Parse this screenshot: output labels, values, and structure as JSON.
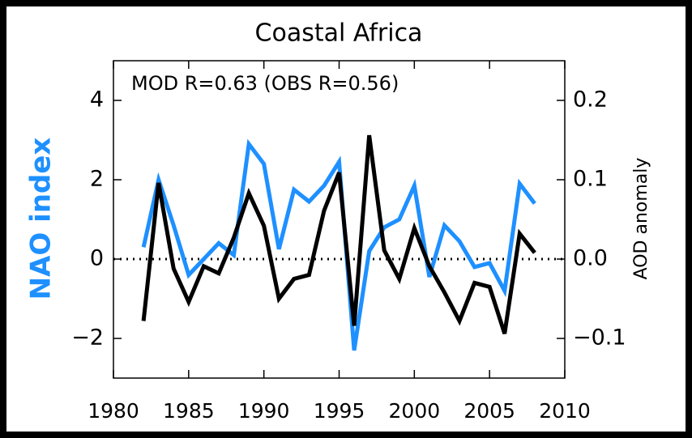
{
  "chart_data": {
    "type": "line",
    "title": "Coastal Africa",
    "annotation": "MOD R=0.63 (OBS R=0.56)",
    "ylabel": "NAO index",
    "y2label": "AOD anomaly",
    "x": [
      1982,
      1983,
      1984,
      1985,
      1986,
      1987,
      1988,
      1989,
      1990,
      1991,
      1992,
      1993,
      1994,
      1995,
      1996,
      1997,
      1998,
      1999,
      2000,
      2001,
      2002,
      2003,
      2004,
      2005,
      2006,
      2007,
      2008
    ],
    "series": [
      {
        "color": "#1e90ff",
        "values": [
          0.3,
          2.0,
          0.85,
          -0.4,
          0.0,
          0.4,
          0.1,
          2.9,
          2.4,
          0.25,
          1.75,
          1.45,
          1.85,
          2.45,
          -2.3,
          0.2,
          0.8,
          1.0,
          1.85,
          -0.45,
          0.85,
          0.45,
          -0.2,
          -0.1,
          -0.8,
          1.9,
          1.4
        ]
      },
      {
        "color": "#000000",
        "axis": "y2",
        "values": [
          -0.078,
          0.096,
          -0.012,
          -0.054,
          -0.009,
          -0.018,
          0.027,
          0.083,
          0.042,
          -0.05,
          -0.025,
          -0.02,
          0.061,
          0.109,
          -0.084,
          0.156,
          0.011,
          -0.025,
          0.039,
          -0.009,
          -0.042,
          -0.078,
          -0.03,
          -0.035,
          -0.094,
          0.032,
          0.008
        ]
      }
    ],
    "xlim": [
      1980,
      2010
    ],
    "xticks": [
      1980,
      1985,
      1990,
      1995,
      2000,
      2005,
      2010
    ],
    "ylim": [
      -3,
      5
    ],
    "yticks": [
      {
        "value": -2,
        "label": "−2"
      },
      0,
      2,
      4
    ],
    "y2lim": [
      -0.15,
      0.25
    ],
    "y2ticks": [
      {
        "value": -0.1,
        "label": "−0.1"
      },
      {
        "value": 0,
        "label": "0.0"
      },
      0.1,
      0.2
    ],
    "zero_line": true
  }
}
